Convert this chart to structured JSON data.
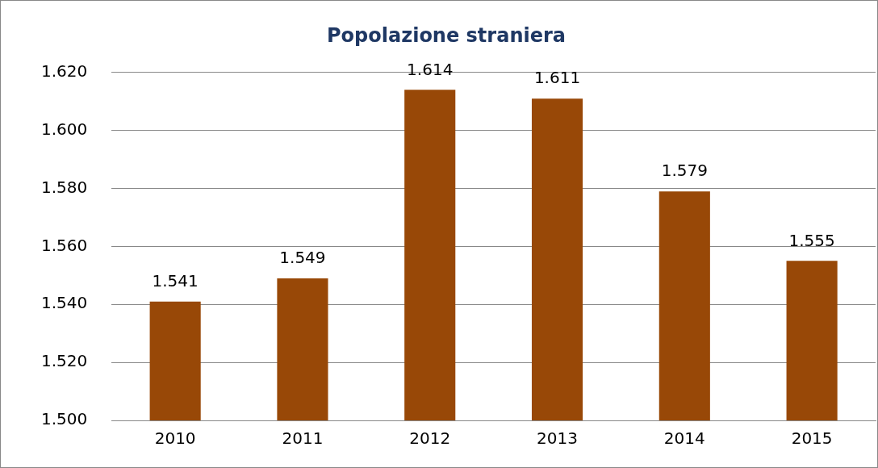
{
  "chart_data": {
    "type": "bar",
    "title": "Popolazione straniera",
    "categories": [
      "2010",
      "2011",
      "2012",
      "2013",
      "2014",
      "2015"
    ],
    "values": [
      1541,
      1549,
      1614,
      1611,
      1579,
      1555
    ],
    "value_labels": [
      "1.541",
      "1.549",
      "1.614",
      "1.611",
      "1.579",
      "1.555"
    ],
    "color": "#984807",
    "ylim": [
      1500,
      1620
    ],
    "yticks": [
      {
        "value": 1500,
        "label": "1.500"
      },
      {
        "value": 1520,
        "label": "1.520"
      },
      {
        "value": 1540,
        "label": "1.540"
      },
      {
        "value": 1560,
        "label": "1.560"
      },
      {
        "value": 1580,
        "label": "1.580"
      },
      {
        "value": 1600,
        "label": "1.600"
      },
      {
        "value": 1620,
        "label": "1.620"
      }
    ],
    "grid": "y",
    "legend": false
  }
}
